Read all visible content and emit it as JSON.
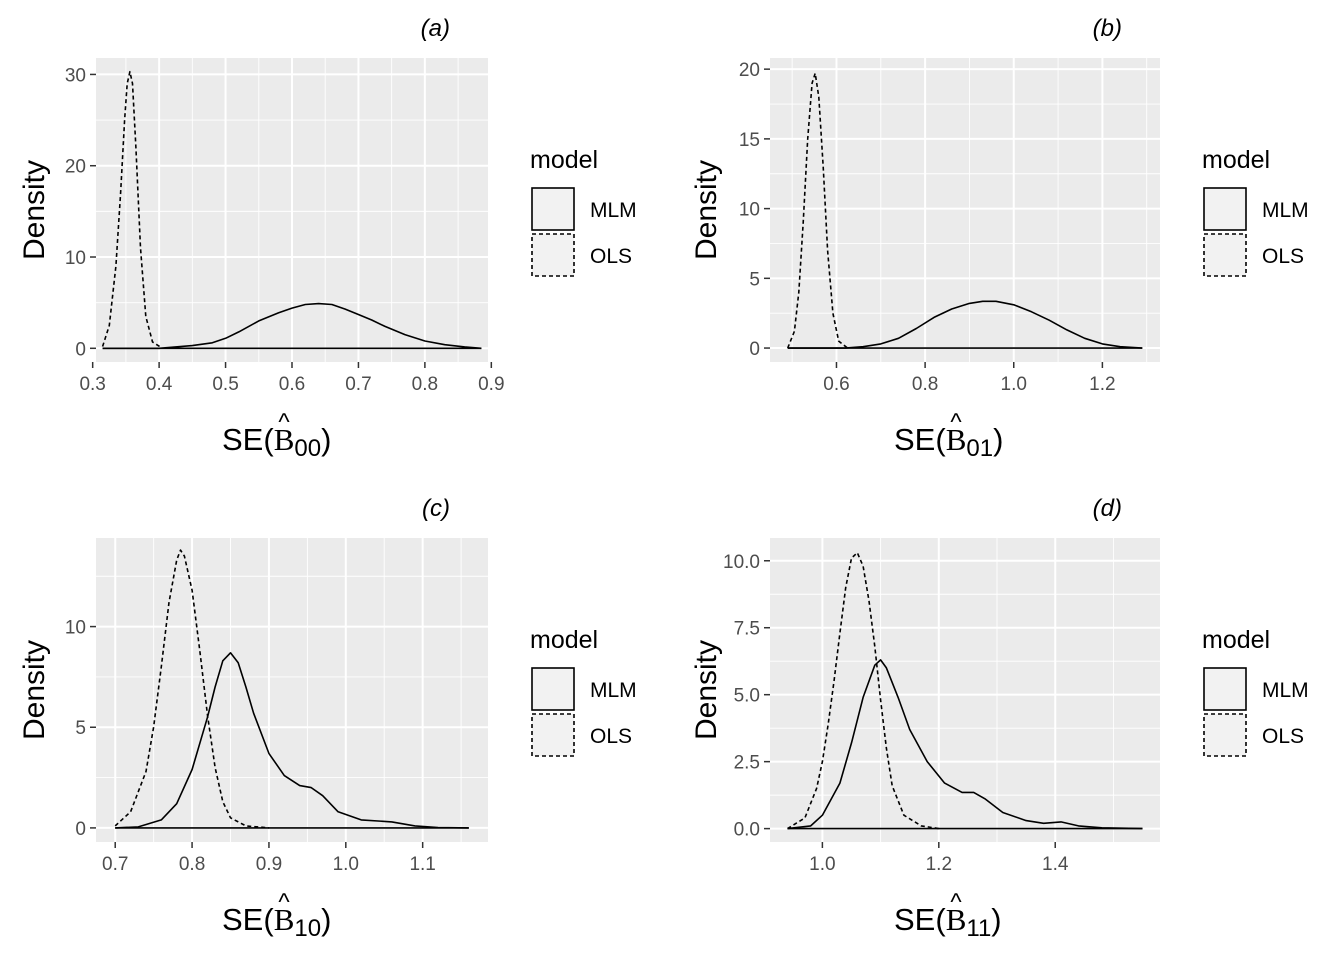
{
  "colors": {
    "panel_background": "#ebebeb",
    "grid": "#ffffff",
    "line": "#000000",
    "legend_key_fill": "#f2f2f2"
  },
  "chart_data": [
    {
      "type": "line",
      "panel_title": "(a)",
      "ylabel": "Density",
      "xlabel": {
        "prefix": "SE(",
        "symbol": "B",
        "accent": "^",
        "subscript": "00",
        "suffix": ")"
      },
      "xlim": [
        0.305,
        0.895
      ],
      "ylim": [
        -1.5,
        31.8
      ],
      "x_ticks": [
        0.3,
        0.4,
        0.5,
        0.6,
        0.7,
        0.8,
        0.9
      ],
      "x_tick_labels": [
        "0.3",
        "0.4",
        "0.5",
        "0.6",
        "0.7",
        "0.8",
        "0.9"
      ],
      "y_ticks": [
        0,
        10,
        20,
        30
      ],
      "y_tick_labels": [
        "0",
        "10",
        "20",
        "30"
      ],
      "grid": true,
      "legend": {
        "title": "model",
        "position": "right",
        "entries": [
          "MLM",
          "OLS"
        ]
      },
      "series": [
        {
          "name": "MLM",
          "linestyle": "solid",
          "x": [
            0.315,
            0.4,
            0.45,
            0.48,
            0.5,
            0.52,
            0.55,
            0.58,
            0.6,
            0.62,
            0.64,
            0.66,
            0.68,
            0.7,
            0.72,
            0.74,
            0.77,
            0.8,
            0.83,
            0.86,
            0.885
          ],
          "y": [
            0,
            0,
            0.3,
            0.6,
            1.1,
            1.8,
            3.0,
            3.9,
            4.4,
            4.8,
            4.9,
            4.8,
            4.3,
            3.7,
            3.1,
            2.4,
            1.5,
            0.8,
            0.4,
            0.15,
            0
          ]
        },
        {
          "name": "OLS",
          "linestyle": "dashed",
          "x": [
            0.315,
            0.325,
            0.335,
            0.342,
            0.348,
            0.352,
            0.356,
            0.36,
            0.365,
            0.372,
            0.38,
            0.39,
            0.405
          ],
          "y": [
            0.2,
            2.5,
            9,
            17,
            25,
            29,
            30.3,
            29,
            22,
            11,
            3.5,
            0.7,
            0
          ]
        }
      ]
    },
    {
      "type": "line",
      "panel_title": "(b)",
      "ylabel": "Density",
      "xlabel": {
        "prefix": "SE(",
        "symbol": "B",
        "accent": "^",
        "subscript": "01",
        "suffix": ")"
      },
      "xlim": [
        0.45,
        1.33
      ],
      "ylim": [
        -1.0,
        20.8
      ],
      "x_ticks": [
        0.6,
        0.8,
        1.0,
        1.2
      ],
      "x_tick_labels": [
        "0.6",
        "0.8",
        "1.0",
        "1.2"
      ],
      "y_ticks": [
        0,
        5,
        10,
        15,
        20
      ],
      "y_tick_labels": [
        "0",
        "5",
        "10",
        "15",
        "20"
      ],
      "grid": true,
      "legend": {
        "title": "model",
        "position": "right",
        "entries": [
          "MLM",
          "OLS"
        ]
      },
      "series": [
        {
          "name": "MLM",
          "linestyle": "solid",
          "x": [
            0.49,
            0.62,
            0.66,
            0.7,
            0.74,
            0.78,
            0.82,
            0.86,
            0.9,
            0.93,
            0.96,
            1.0,
            1.04,
            1.08,
            1.12,
            1.16,
            1.2,
            1.24,
            1.29
          ],
          "y": [
            0,
            0,
            0.1,
            0.3,
            0.7,
            1.4,
            2.2,
            2.8,
            3.2,
            3.35,
            3.35,
            3.1,
            2.6,
            2.0,
            1.3,
            0.7,
            0.3,
            0.1,
            0
          ]
        },
        {
          "name": "OLS",
          "linestyle": "dashed",
          "x": [
            0.49,
            0.505,
            0.515,
            0.525,
            0.535,
            0.545,
            0.552,
            0.56,
            0.57,
            0.58,
            0.592,
            0.605,
            0.625
          ],
          "y": [
            0,
            1.2,
            4,
            9,
            15,
            19,
            19.7,
            18,
            13,
            7,
            2.5,
            0.5,
            0
          ]
        }
      ]
    },
    {
      "type": "line",
      "panel_title": "(c)",
      "ylabel": "Density",
      "xlabel": {
        "prefix": "SE(",
        "symbol": "B",
        "accent": "^",
        "subscript": "10",
        "suffix": ")"
      },
      "xlim": [
        0.675,
        1.185
      ],
      "ylim": [
        -0.7,
        14.4
      ],
      "x_ticks": [
        0.7,
        0.8,
        0.9,
        1.0,
        1.1
      ],
      "x_tick_labels": [
        "0.7",
        "0.8",
        "0.9",
        "1.0",
        "1.1"
      ],
      "y_ticks": [
        0,
        5,
        10
      ],
      "y_tick_labels": [
        "0",
        "5",
        "10"
      ],
      "grid": true,
      "legend": {
        "title": "model",
        "position": "right",
        "entries": [
          "MLM",
          "OLS"
        ]
      },
      "series": [
        {
          "name": "MLM",
          "linestyle": "solid",
          "x": [
            0.7,
            0.73,
            0.76,
            0.78,
            0.8,
            0.82,
            0.83,
            0.84,
            0.85,
            0.86,
            0.87,
            0.88,
            0.9,
            0.92,
            0.94,
            0.955,
            0.97,
            0.99,
            1.02,
            1.06,
            1.09,
            1.12,
            1.16
          ],
          "y": [
            0,
            0.05,
            0.4,
            1.2,
            2.9,
            5.5,
            7.0,
            8.3,
            8.7,
            8.2,
            7.0,
            5.7,
            3.7,
            2.6,
            2.1,
            2.0,
            1.6,
            0.8,
            0.4,
            0.3,
            0.1,
            0.02,
            0
          ]
        },
        {
          "name": "OLS",
          "linestyle": "dashed",
          "x": [
            0.7,
            0.72,
            0.74,
            0.75,
            0.76,
            0.77,
            0.78,
            0.785,
            0.79,
            0.8,
            0.81,
            0.82,
            0.83,
            0.84,
            0.85,
            0.87,
            0.9
          ],
          "y": [
            0.1,
            0.8,
            2.8,
            5.0,
            8.0,
            11.2,
            13.3,
            13.8,
            13.5,
            11.8,
            8.8,
            5.6,
            3.0,
            1.3,
            0.5,
            0.1,
            0
          ]
        }
      ]
    },
    {
      "type": "line",
      "panel_title": "(d)",
      "ylabel": "Density",
      "xlabel": {
        "prefix": "SE(",
        "symbol": "B",
        "accent": "^",
        "subscript": "11",
        "suffix": ")"
      },
      "xlim": [
        0.91,
        1.58
      ],
      "ylim": [
        -0.5,
        10.85
      ],
      "x_ticks": [
        1.0,
        1.2,
        1.4
      ],
      "x_tick_labels": [
        "1.0",
        "1.2",
        "1.4"
      ],
      "y_ticks": [
        0,
        2.5,
        5,
        7.5,
        10
      ],
      "y_tick_labels": [
        "0.0",
        "2.5",
        "5.0",
        "7.5",
        "10.0"
      ],
      "grid": true,
      "legend": {
        "title": "model",
        "position": "right",
        "entries": [
          "MLM",
          "OLS"
        ]
      },
      "series": [
        {
          "name": "MLM",
          "linestyle": "solid",
          "x": [
            0.94,
            0.98,
            1.0,
            1.03,
            1.05,
            1.07,
            1.09,
            1.1,
            1.11,
            1.13,
            1.15,
            1.18,
            1.21,
            1.24,
            1.26,
            1.28,
            1.31,
            1.35,
            1.38,
            1.41,
            1.44,
            1.48,
            1.55
          ],
          "y": [
            0,
            0.1,
            0.5,
            1.7,
            3.2,
            4.9,
            6.1,
            6.3,
            6.0,
            4.9,
            3.7,
            2.5,
            1.7,
            1.35,
            1.35,
            1.1,
            0.6,
            0.3,
            0.2,
            0.25,
            0.1,
            0.03,
            0
          ]
        },
        {
          "name": "OLS",
          "linestyle": "dashed",
          "x": [
            0.94,
            0.97,
            0.99,
            1.0,
            1.01,
            1.02,
            1.03,
            1.04,
            1.05,
            1.06,
            1.07,
            1.08,
            1.09,
            1.1,
            1.11,
            1.12,
            1.14,
            1.17,
            1.2
          ],
          "y": [
            0,
            0.4,
            1.5,
            2.5,
            3.9,
            5.5,
            7.3,
            9.0,
            10.1,
            10.3,
            9.8,
            8.5,
            6.8,
            4.8,
            3.0,
            1.6,
            0.5,
            0.1,
            0
          ]
        }
      ]
    }
  ]
}
